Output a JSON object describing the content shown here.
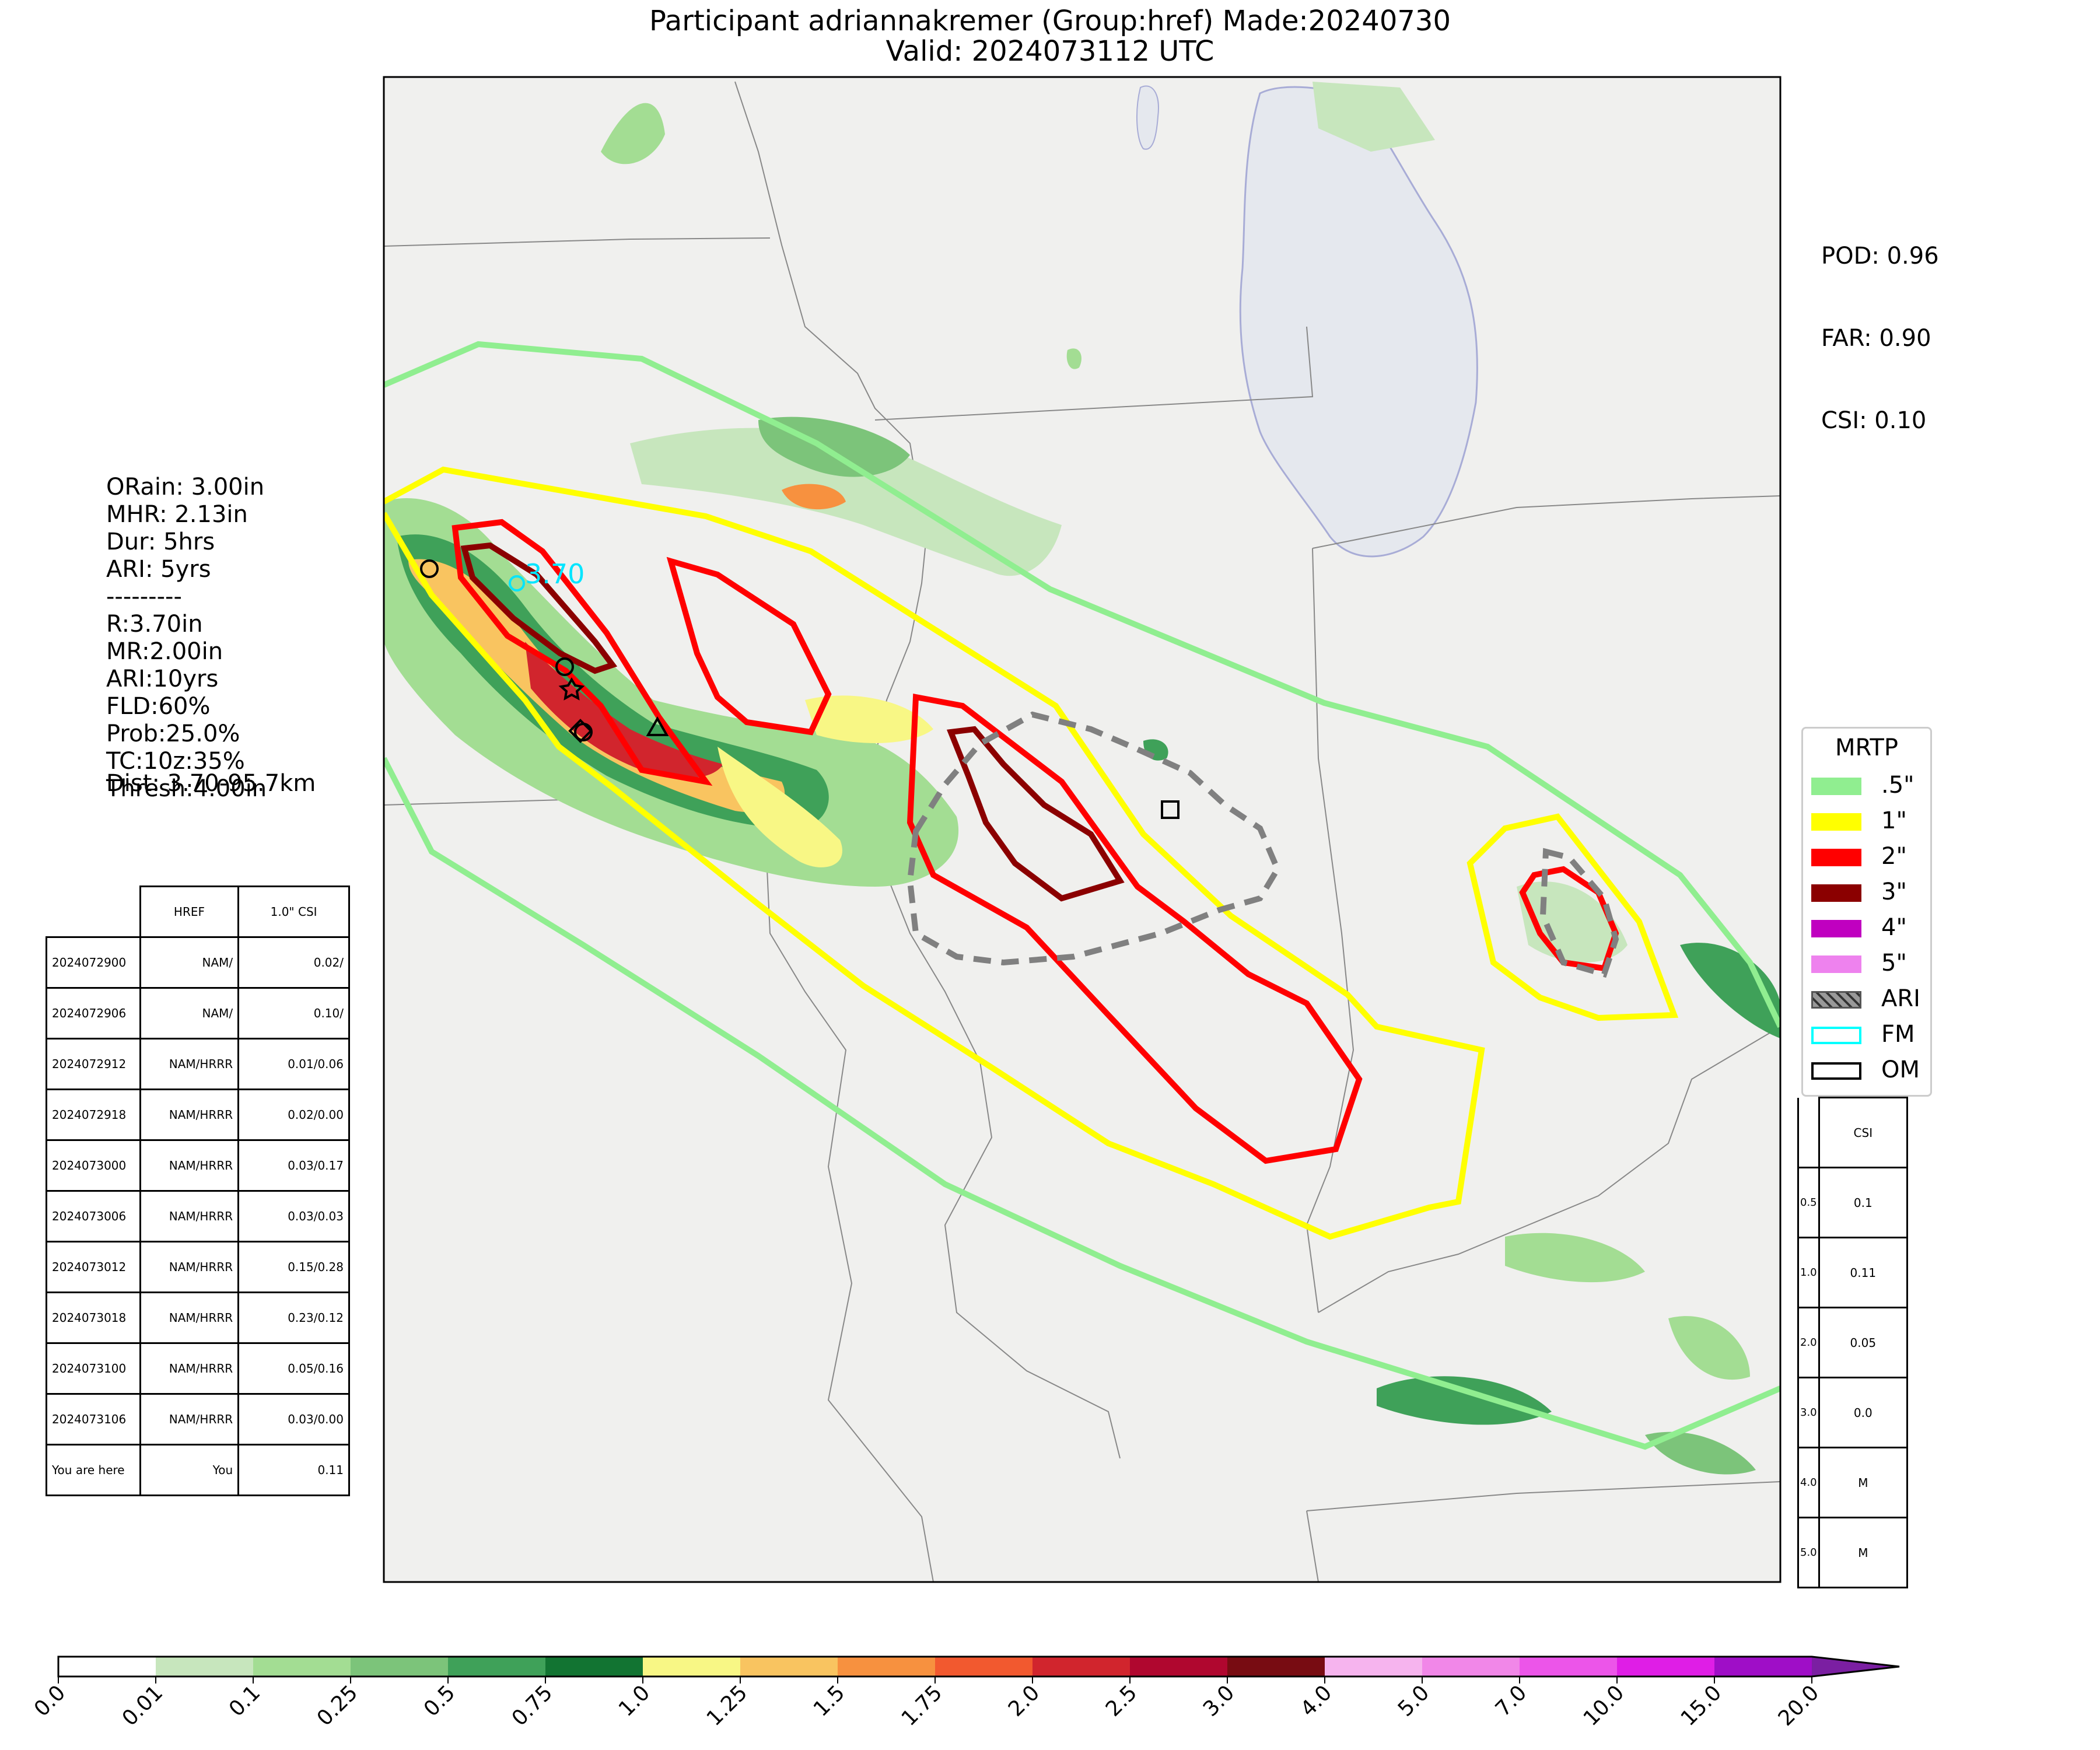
{
  "title": {
    "line1": "Participant adriannakremer (Group:href) Made:20240730",
    "line2": "Valid: 2024073112 UTC"
  },
  "stats": {
    "pod": "POD: 0.96",
    "far": "FAR: 0.90",
    "csi": "CSI: 0.10"
  },
  "info": {
    "lines": [
      "ORain: 3.00in",
      "MHR: 2.13in",
      "Dur: 5hrs",
      "ARI: 5yrs",
      "---------",
      "R:3.70in",
      "MR:2.00in",
      "ARI:10yrs",
      "FLD:60%",
      "Prob:25.0%",
      "TC:10z:35%",
      "Thresh:4.00in"
    ],
    "dist": "Dist: 3.70-95.7km"
  },
  "map": {
    "annotation": "3.70",
    "colors": {
      "half_inch": "#90ee90",
      "one_inch": "#ffff00",
      "two_inch": "#ff0000",
      "three_inch": "#8b0000",
      "four_inch": "#c000c0",
      "five_inch": "#ee82ee",
      "ari": "#808080",
      "fm": "#00ffff",
      "lake": "#e5e8ee",
      "land": "#f0f0ee"
    }
  },
  "legend": {
    "title": "MRTP",
    "items": [
      {
        "label": ".5\"",
        "color": "#90ee90",
        "style": "fill"
      },
      {
        "label": "1\"",
        "color": "#ffff00",
        "style": "fill"
      },
      {
        "label": "2\"",
        "color": "#ff0000",
        "style": "fill"
      },
      {
        "label": "3\"",
        "color": "#8b0000",
        "style": "fill"
      },
      {
        "label": "4\"",
        "color": "#c000c0",
        "style": "fill"
      },
      {
        "label": "5\"",
        "color": "#ee82ee",
        "style": "fill"
      },
      {
        "label": "ARI",
        "color": "#808080",
        "style": "hatch"
      },
      {
        "label": "FM",
        "color": "#00ffff",
        "style": "outline"
      },
      {
        "label": "OM",
        "color": "#000000",
        "style": "outline"
      }
    ]
  },
  "left_table": {
    "headers": [
      "",
      "HREF",
      "1.0\" CSI"
    ],
    "rows": [
      [
        "2024072900",
        "NAM/",
        "0.02/"
      ],
      [
        "2024072906",
        "NAM/",
        "0.10/"
      ],
      [
        "2024072912",
        "NAM/HRRR",
        "0.01/0.06"
      ],
      [
        "2024072918",
        "NAM/HRRR",
        "0.02/0.00"
      ],
      [
        "2024073000",
        "NAM/HRRR",
        "0.03/0.17"
      ],
      [
        "2024073006",
        "NAM/HRRR",
        "0.03/0.03"
      ],
      [
        "2024073012",
        "NAM/HRRR",
        "0.15/0.28"
      ],
      [
        "2024073018",
        "NAM/HRRR",
        "0.23/0.12"
      ],
      [
        "2024073100",
        "NAM/HRRR",
        "0.05/0.16"
      ],
      [
        "2024073106",
        "NAM/HRRR",
        "0.03/0.00"
      ],
      [
        "You are here",
        "You",
        "0.11"
      ]
    ]
  },
  "right_table": {
    "header": "CSI",
    "rows": [
      [
        "0.5",
        "0.1"
      ],
      [
        "1.0",
        "0.11"
      ],
      [
        "2.0",
        "0.05"
      ],
      [
        "3.0",
        "0.0"
      ],
      [
        "4.0",
        "M"
      ],
      [
        "5.0",
        "M"
      ]
    ]
  },
  "colorbar": {
    "ticks": [
      "0.0",
      "0.01",
      "0.1",
      "0.25",
      "0.5",
      "0.75",
      "1.0",
      "1.25",
      "1.5",
      "1.75",
      "2.0",
      "2.5",
      "3.0",
      "4.0",
      "5.0",
      "7.0",
      "10.0",
      "15.0",
      "20.0"
    ],
    "colors": [
      "#ffffff",
      "#c7e6bd",
      "#a3dd93",
      "#7cc47a",
      "#3fa159",
      "#127432",
      "#f8f785",
      "#f9c460",
      "#f7913f",
      "#f2592f",
      "#d1252d",
      "#b0072f",
      "#780c12",
      "#f6b4ee",
      "#f187e8",
      "#ec55e9",
      "#df1ee6",
      "#9f0ec7"
    ],
    "extend_color": "#7b1fa2"
  }
}
